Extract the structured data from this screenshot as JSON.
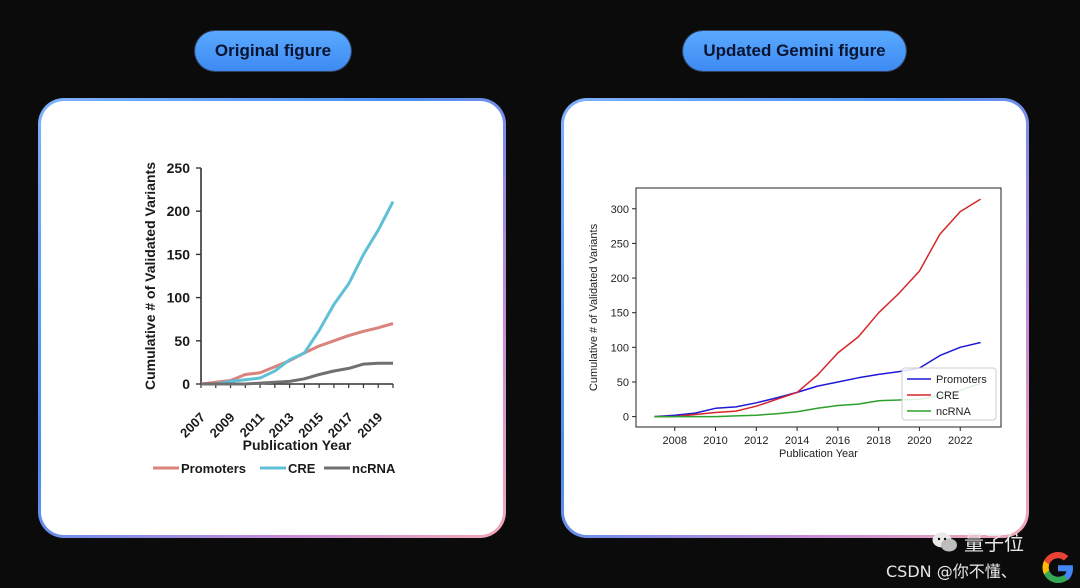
{
  "labels": {
    "left_title": "Original figure",
    "right_title": "Updated Gemini figure"
  },
  "watermark": {
    "brand": "量子位",
    "credit": "CSDN @你不懂、"
  },
  "icons": {
    "watermark_logo": "wechat-icon",
    "corner_logo": "google-g-icon"
  },
  "colors": {
    "pill": "#4b9bfa",
    "background": "#0b0b0b"
  },
  "chart_data": [
    {
      "type": "line",
      "xlabel": "Publication Year",
      "ylabel": "Cumulative # of Validated Variants",
      "xlim": [
        2007,
        2020
      ],
      "ylim": [
        0,
        250
      ],
      "x": [
        2007,
        2008,
        2009,
        2010,
        2011,
        2012,
        2013,
        2014,
        2015,
        2016,
        2017,
        2018,
        2019,
        2020
      ],
      "xticks": [
        2007,
        2009,
        2011,
        2013,
        2015,
        2017,
        2019
      ],
      "yticks": [
        0,
        50,
        100,
        150,
        200,
        250
      ],
      "grid": false,
      "legend": "bottom",
      "series": [
        {
          "name": "Promoters",
          "color": "#d9837c",
          "values": [
            0,
            2,
            4,
            11,
            13,
            20,
            27,
            36,
            44,
            50,
            56,
            61,
            65,
            70
          ]
        },
        {
          "name": "CRE",
          "color": "#5fc0d8",
          "values": [
            0,
            0,
            3,
            5,
            7,
            15,
            28,
            36,
            62,
            92,
            116,
            150,
            178,
            211
          ]
        },
        {
          "name": "ncRNA",
          "color": "#707070",
          "values": [
            0,
            0,
            0,
            0,
            1,
            2,
            3,
            6,
            11,
            15,
            18,
            23,
            24,
            24
          ]
        }
      ]
    },
    {
      "type": "line",
      "xlabel": "Publication Year",
      "ylabel": "Cumulative # of Validated Variants",
      "xlim": [
        2006.1,
        2024.0
      ],
      "ylim": [
        -15,
        330
      ],
      "x": [
        2007,
        2008,
        2009,
        2010,
        2011,
        2012,
        2013,
        2014,
        2015,
        2016,
        2017,
        2018,
        2019,
        2020,
        2021,
        2022,
        2023
      ],
      "xticks": [
        2008,
        2010,
        2012,
        2014,
        2016,
        2018,
        2020,
        2022
      ],
      "yticks": [
        0,
        50,
        100,
        150,
        200,
        250,
        300
      ],
      "grid": false,
      "legend": "bottom-right",
      "series": [
        {
          "name": "Promoters",
          "color": "#1f18d6",
          "values": [
            0,
            2,
            5,
            12,
            14,
            20,
            27,
            35,
            44,
            50,
            56,
            61,
            65,
            70,
            88,
            100,
            107
          ]
        },
        {
          "name": "CRE",
          "color": "#d62728",
          "values": [
            0,
            0,
            3,
            6,
            8,
            15,
            25,
            35,
            60,
            92,
            115,
            150,
            178,
            210,
            263,
            296,
            314
          ]
        },
        {
          "name": "ncRNA",
          "color": "#2ca02c",
          "values": [
            0,
            0,
            0,
            0,
            1,
            2,
            4,
            7,
            12,
            16,
            18,
            23,
            24,
            25,
            30,
            38,
            48
          ]
        }
      ]
    }
  ]
}
